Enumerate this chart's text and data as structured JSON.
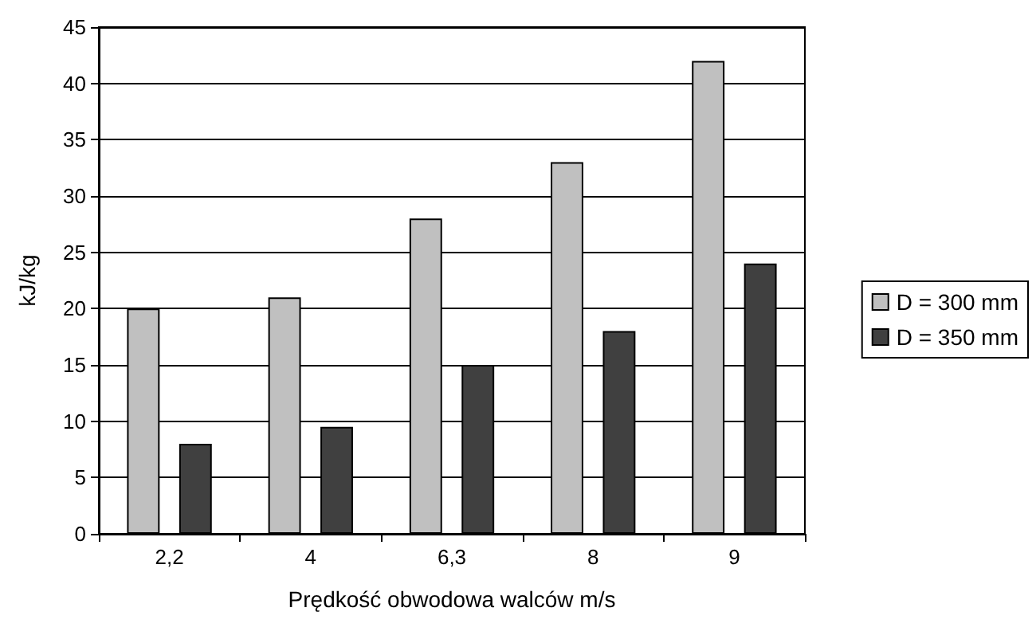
{
  "chart_data": {
    "type": "bar",
    "xlabel": "Prędkość obwodowa walców m/s",
    "ylabel": "kJ/kg",
    "categories": [
      "2,2",
      "4",
      "6,3",
      "8",
      "9"
    ],
    "series": [
      {
        "name": "D = 300 mm",
        "color": "#c0c0c0",
        "values": [
          20,
          21,
          28,
          33,
          42
        ]
      },
      {
        "name": "D = 350 mm",
        "color": "#404040",
        "values": [
          8,
          9.5,
          15,
          18,
          24
        ]
      }
    ],
    "ylim": [
      0,
      45
    ],
    "yticks": [
      0,
      5,
      10,
      15,
      20,
      25,
      30,
      35,
      40,
      45
    ],
    "grid": "y",
    "legend": "right"
  }
}
